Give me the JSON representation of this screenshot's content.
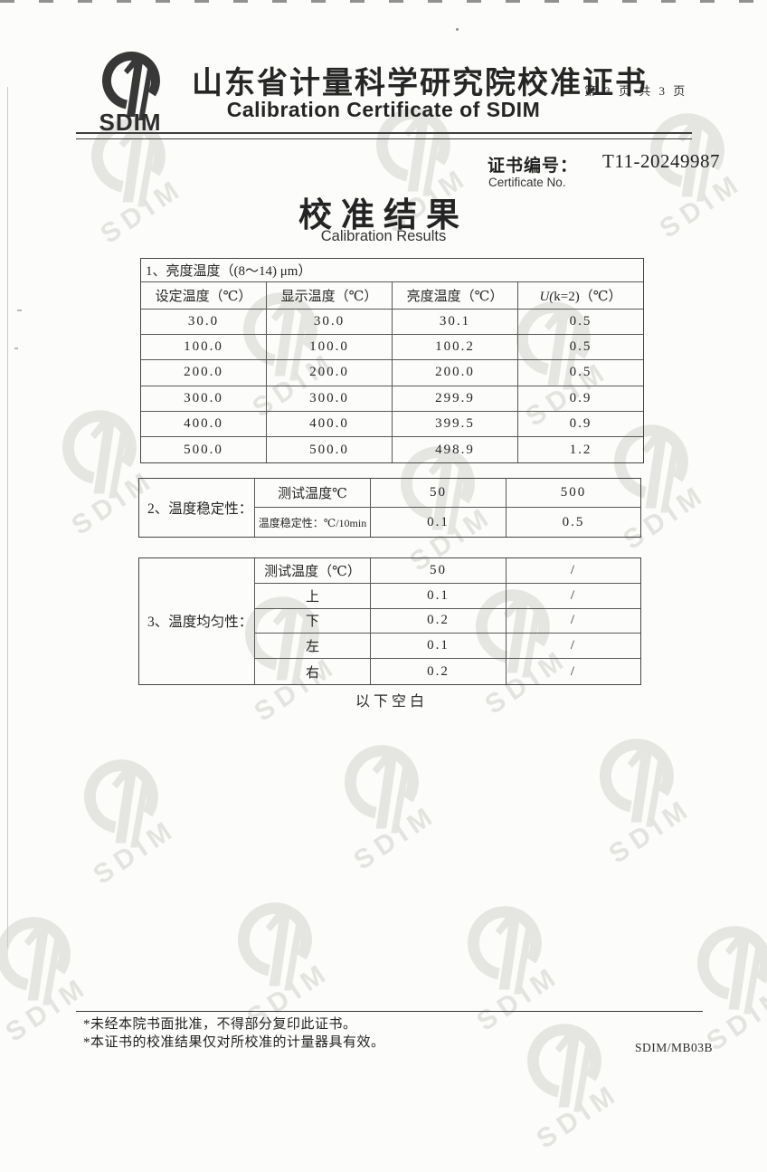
{
  "header": {
    "logo_text": "SDIM",
    "title_cn": "山东省计量科学研究院校准证书",
    "page_info": "第 3 页 共 3 页",
    "title_en": "Calibration Certificate of SDIM"
  },
  "certificate": {
    "label_cn": "证书编号：",
    "number": "T11-20249987",
    "label_en": "Certificate No."
  },
  "results_title": {
    "cn": "校准结果",
    "en": "Calibration Results"
  },
  "table1": {
    "caption": "1、亮度温度（(8～14) μm）",
    "headers": [
      "设定温度（℃）",
      "显示温度（℃）",
      "亮度温度（℃）",
      "U(k=2)（℃）"
    ],
    "rows": [
      [
        "30.0",
        "30.0",
        "30.1",
        "0.5"
      ],
      [
        "100.0",
        "100.0",
        "100.2",
        "0.5"
      ],
      [
        "200.0",
        "200.0",
        "200.0",
        "0.5"
      ],
      [
        "300.0",
        "300.0",
        "299.9",
        "0.9"
      ],
      [
        "400.0",
        "400.0",
        "399.5",
        "0.9"
      ],
      [
        "500.0",
        "500.0",
        "498.9",
        "1.2"
      ]
    ]
  },
  "table2": {
    "label": "2、温度稳定性：",
    "rows": [
      {
        "name": "测试温度℃",
        "v1": "50",
        "v2": "500"
      },
      {
        "name": "温度稳定性：℃/10min",
        "v1": "0.1",
        "v2": "0.5"
      }
    ]
  },
  "table3": {
    "label": "3、温度均匀性：",
    "rows": [
      {
        "name": "测试温度（℃）",
        "v1": "50",
        "v2": "/"
      },
      {
        "name": "上",
        "v1": "0.1",
        "v2": "/"
      },
      {
        "name": "下",
        "v1": "0.2",
        "v2": "/"
      },
      {
        "name": "左",
        "v1": "0.1",
        "v2": "/"
      },
      {
        "name": "右",
        "v1": "0.2",
        "v2": "/"
      }
    ]
  },
  "end_note": "以下空白",
  "footer": {
    "note1": "*未经本院书面批准，不得部分复印此证书。",
    "note2": "*本证书的校准结果仅对所校准的计量器具有效。",
    "form_code": "SDIM/MB03B"
  },
  "watermark": {
    "text": "SDIM"
  },
  "colors": {
    "ink": "#2a2a2a",
    "table_border": "#555555",
    "watermark": "#d3d3ce"
  }
}
